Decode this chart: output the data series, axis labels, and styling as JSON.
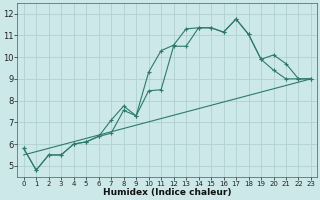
{
  "title": "",
  "xlabel": "Humidex (Indice chaleur)",
  "bg_color": "#cce8e8",
  "grid_color": "#b0d0d0",
  "line_color": "#2d7a6a",
  "xlim": [
    -0.5,
    23.5
  ],
  "ylim": [
    4.5,
    12.5
  ],
  "xticks": [
    0,
    1,
    2,
    3,
    4,
    5,
    6,
    7,
    8,
    9,
    10,
    11,
    12,
    13,
    14,
    15,
    16,
    17,
    18,
    19,
    20,
    21,
    22,
    23
  ],
  "yticks": [
    5,
    6,
    7,
    8,
    9,
    10,
    11,
    12
  ],
  "series1_x": [
    0,
    1,
    2,
    3,
    4,
    5,
    6,
    7,
    8,
    9,
    10,
    11,
    12,
    13,
    14,
    15,
    16,
    17,
    18,
    19,
    20,
    21,
    22,
    23
  ],
  "series1_y": [
    5.8,
    4.8,
    5.5,
    5.5,
    6.0,
    6.1,
    6.35,
    6.5,
    7.55,
    7.3,
    9.3,
    10.3,
    10.55,
    11.3,
    11.35,
    11.35,
    11.15,
    11.75,
    11.05,
    9.9,
    10.1,
    9.7,
    9.0,
    9.0
  ],
  "series2_x": [
    0,
    1,
    2,
    3,
    4,
    5,
    6,
    7,
    8,
    9,
    10,
    11,
    12,
    13,
    14,
    15,
    16,
    17,
    18,
    19,
    20,
    21,
    22,
    23
  ],
  "series2_y": [
    5.8,
    4.8,
    5.5,
    5.5,
    6.0,
    6.1,
    6.35,
    7.1,
    7.75,
    7.3,
    8.45,
    8.5,
    10.5,
    10.5,
    11.35,
    11.35,
    11.15,
    11.75,
    11.05,
    9.9,
    9.4,
    9.0,
    9.0,
    9.0
  ],
  "series3_x": [
    0,
    23
  ],
  "series3_y": [
    5.5,
    9.0
  ]
}
